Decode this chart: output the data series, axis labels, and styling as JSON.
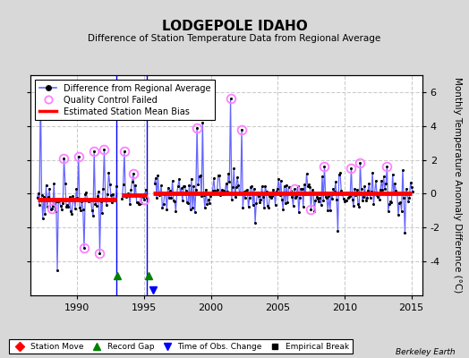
{
  "title": "LODGEPOLE IDAHO",
  "subtitle": "Difference of Station Temperature Data from Regional Average",
  "ylabel": "Monthly Temperature Anomaly Difference (°C)",
  "bg_color": "#d8d8d8",
  "plot_bg_color": "#ffffff",
  "ylim": [
    -6,
    7
  ],
  "xlim": [
    1986.5,
    2015.8
  ],
  "yticks": [
    -4,
    -2,
    0,
    2,
    4,
    6
  ],
  "xticks": [
    1990,
    1995,
    2000,
    2005,
    2010,
    2015
  ],
  "segment_biases": [
    {
      "xstart": 1987.0,
      "xend": 1992.95,
      "bias": -0.35
    },
    {
      "xstart": 1993.3,
      "xend": 1995.2,
      "bias": -0.1
    },
    {
      "xstart": 1995.7,
      "xend": 2015.0,
      "bias": 0.05
    }
  ],
  "gap1_start": 1992.95,
  "gap1_end": 1993.3,
  "gap2_start": 1995.2,
  "gap2_end": 1995.7,
  "record_gaps": [
    1993.0,
    1995.35
  ],
  "time_obs_changes": [
    1995.7
  ],
  "station_moves": [],
  "empirical_breaks": [],
  "line_color": "#6666ff",
  "dot_color": "#000000",
  "qc_color": "#ff80ff",
  "bias_color": "#ff0000"
}
